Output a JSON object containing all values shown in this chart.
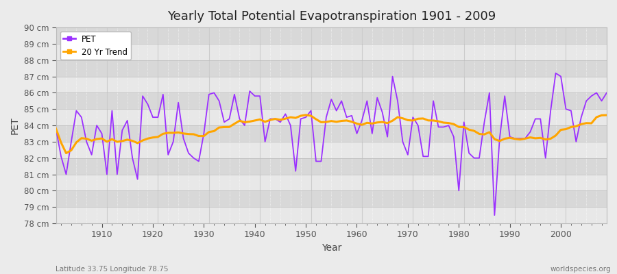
{
  "title": "Yearly Total Potential Evapotranspiration 1901 - 2009",
  "xlabel": "Year",
  "ylabel": "PET",
  "bottom_left_label": "Latitude 33.75 Longitude 78.75",
  "bottom_right_label": "worldspecies.org",
  "pet_color": "#9B30FF",
  "trend_color": "#FFA500",
  "background_color": "#EBEBEB",
  "plot_bg_color": "#E0E0E0",
  "band_light": "#E8E8E8",
  "band_dark": "#D8D8D8",
  "grid_color": "#FFFFFF",
  "ylim": [
    78,
    90
  ],
  "xlim": [
    1901,
    2009
  ],
  "ytick_labels": [
    "78 cm",
    "79 cm",
    "80 cm",
    "81 cm",
    "82 cm",
    "83 cm",
    "84 cm",
    "85 cm",
    "86 cm",
    "87 cm",
    "88 cm",
    "89 cm",
    "90 cm"
  ],
  "ytick_values": [
    78,
    79,
    80,
    81,
    82,
    83,
    84,
    85,
    86,
    87,
    88,
    89,
    90
  ],
  "pet_values": [
    83.8,
    82.1,
    81.0,
    83.0,
    84.9,
    84.5,
    83.0,
    82.2,
    84.0,
    83.5,
    81.0,
    84.9,
    81.0,
    83.7,
    84.3,
    82.0,
    80.7,
    85.8,
    85.3,
    84.5,
    84.5,
    85.9,
    82.2,
    83.0,
    85.4,
    83.2,
    82.3,
    82.0,
    81.8,
    83.5,
    85.9,
    86.0,
    85.5,
    84.2,
    84.4,
    85.9,
    84.4,
    84.0,
    86.1,
    85.8,
    85.8,
    83.0,
    84.4,
    84.4,
    84.2,
    84.7,
    84.0,
    81.2,
    84.4,
    84.5,
    84.9,
    81.8,
    81.8,
    84.5,
    85.6,
    84.9,
    85.5,
    84.5,
    84.6,
    83.5,
    84.3,
    85.5,
    83.5,
    85.7,
    84.8,
    83.3,
    87.0,
    85.5,
    83.0,
    82.2,
    84.5,
    84.0,
    82.1,
    82.1,
    85.5,
    83.9,
    83.9,
    84.0,
    83.3,
    80.0,
    84.2,
    82.3,
    82.0,
    82.0,
    84.2,
    86.0,
    78.5,
    83.2,
    85.8,
    83.3,
    83.2,
    83.2,
    83.2,
    83.6,
    84.4,
    84.4,
    82.0,
    84.9,
    87.2,
    87.0,
    85.0,
    84.9,
    83.0,
    84.5,
    85.5,
    85.8,
    86.0,
    85.5,
    86.0
  ]
}
